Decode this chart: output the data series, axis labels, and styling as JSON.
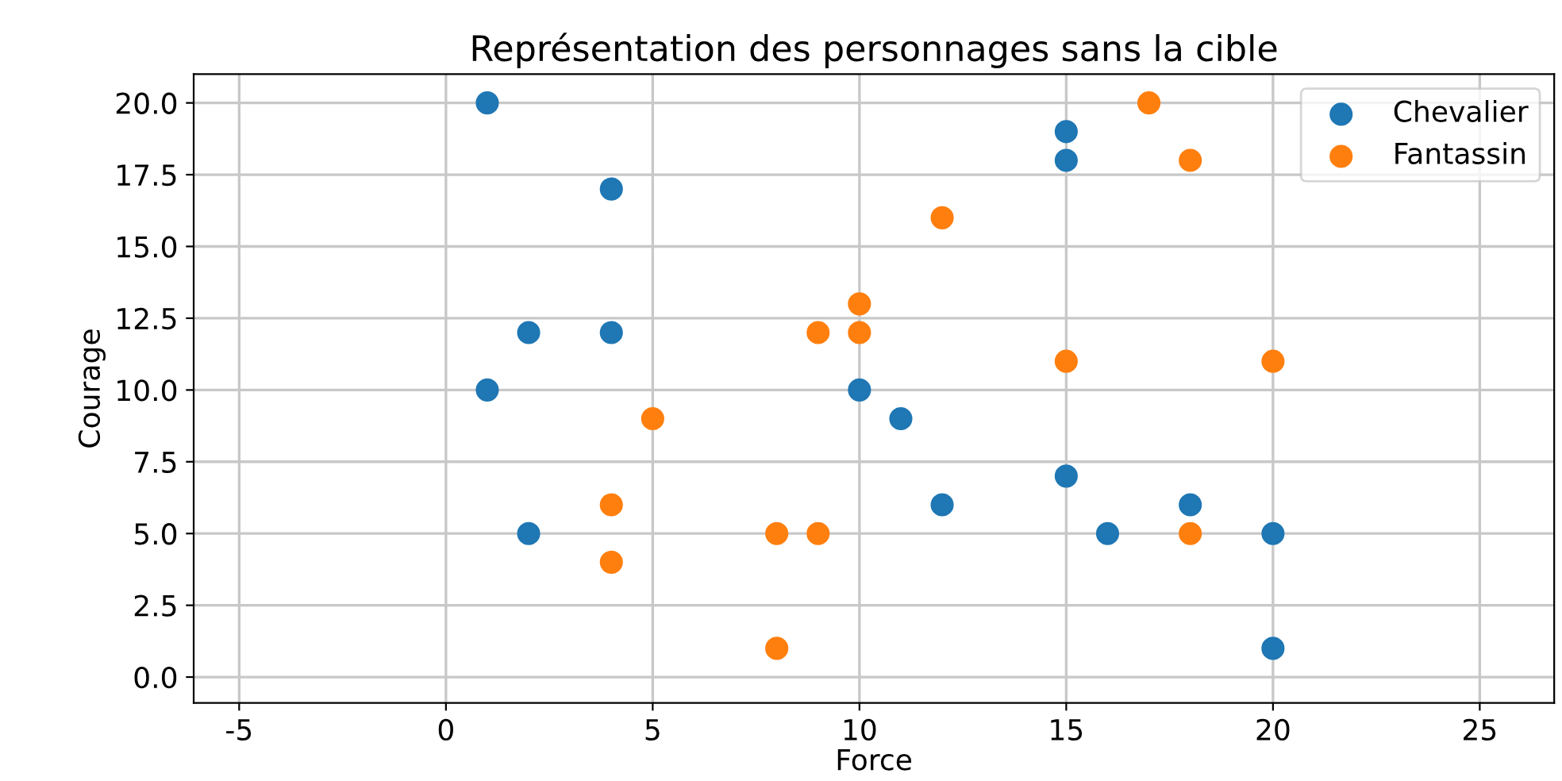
{
  "chart_data": {
    "type": "scatter",
    "title": "Représentation des personnages sans la cible",
    "xlabel": "Force",
    "ylabel": "Courage",
    "xlim": [
      -6.1,
      26.8
    ],
    "ylim": [
      -0.9,
      21.0
    ],
    "xticks": [
      -5,
      0,
      5,
      10,
      15,
      20,
      25
    ],
    "yticks": [
      {
        "value": 0,
        "label": "0.0"
      },
      {
        "value": 2.5,
        "label": "2.5"
      },
      {
        "value": 5,
        "label": "5.0"
      },
      {
        "value": 7.5,
        "label": "7.5"
      },
      {
        "value": 10,
        "label": "10.0"
      },
      {
        "value": 12.5,
        "label": "12.5"
      },
      {
        "value": 15,
        "label": "15.0"
      },
      {
        "value": 17.5,
        "label": "17.5"
      },
      {
        "value": 20,
        "label": "20.0"
      }
    ],
    "grid": true,
    "legend": "top right",
    "marker": "circle",
    "series": [
      {
        "name": "Chevalier",
        "color": "#1f77b4",
        "x": [
          1,
          15,
          15,
          4,
          2,
          4,
          1,
          10,
          11,
          15,
          12,
          18,
          2,
          16,
          20,
          20
        ],
        "values": [
          20,
          19,
          18,
          17,
          12,
          12,
          10,
          10,
          9,
          7,
          6,
          6,
          5,
          5,
          5,
          1
        ]
      },
      {
        "name": "Fantassin",
        "color": "#ff7f0e",
        "x": [
          17,
          18,
          12,
          10,
          9,
          10,
          15,
          20,
          5,
          4,
          4,
          8,
          9,
          18,
          8
        ],
        "values": [
          20,
          18,
          16,
          13,
          12,
          12,
          11,
          11,
          9,
          6,
          4,
          5,
          5,
          5,
          1
        ]
      }
    ]
  }
}
